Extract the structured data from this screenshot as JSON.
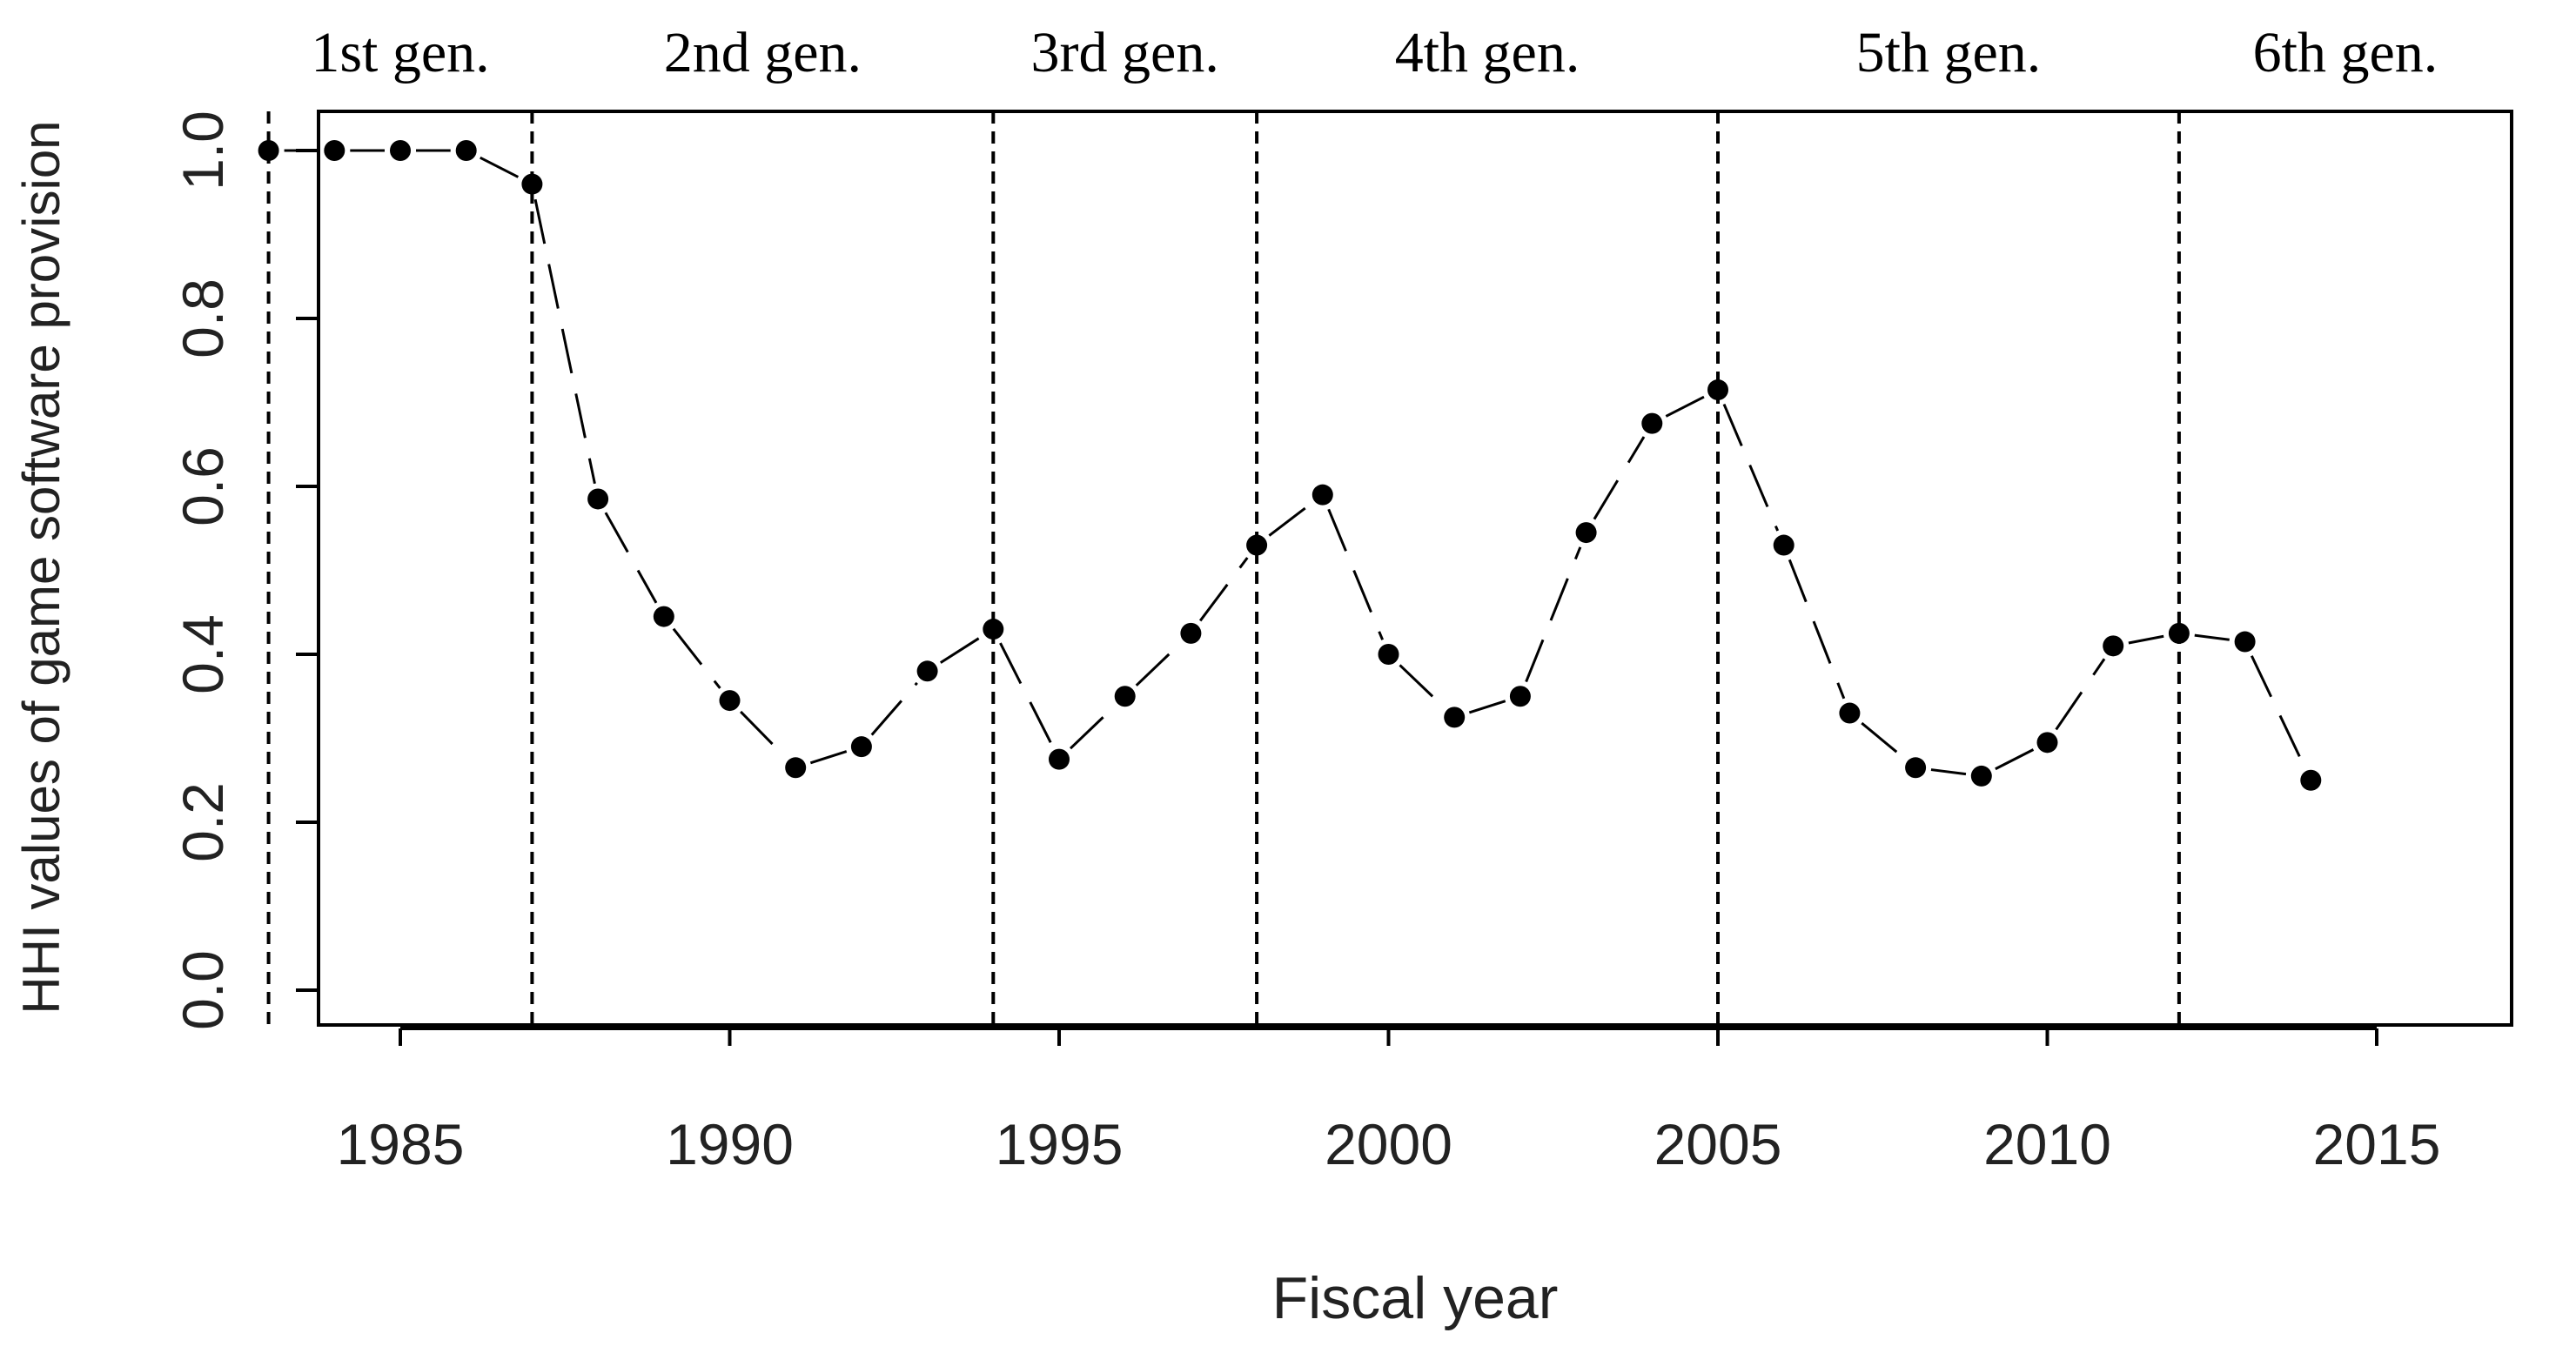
{
  "chart_data": {
    "type": "line",
    "title": "",
    "xlabel": "Fiscal year",
    "ylabel": "HHI values of game software provision",
    "xlim": [
      1982,
      2015
    ],
    "ylim": [
      0.0,
      1.0
    ],
    "x_ticks": [
      1985,
      1990,
      1995,
      2000,
      2005,
      2010,
      2015
    ],
    "y_ticks": [
      0.0,
      0.2,
      0.4,
      0.6,
      0.8,
      1.0
    ],
    "x_tick_labels": [
      "1985",
      "1990",
      "1995",
      "2000",
      "2005",
      "2010",
      "2015"
    ],
    "y_tick_labels": [
      "0.0",
      "0.2",
      "0.4",
      "0.6",
      "0.8",
      "1.0"
    ],
    "grid": false,
    "line_style": "dashed",
    "marker": "filled-circle",
    "series": [
      {
        "x": [
          1983,
          1984,
          1985,
          1986,
          1987,
          1988,
          1989,
          1990,
          1991,
          1992,
          1993,
          1994,
          1995,
          1996,
          1997,
          1998,
          1999,
          2000,
          2001,
          2002,
          2003,
          2004,
          2005,
          2006,
          2007,
          2008,
          2009,
          2010,
          2011,
          2012,
          2013,
          2014
        ],
        "values": [
          1.0,
          1.0,
          1.0,
          1.0,
          0.96,
          0.585,
          0.445,
          0.345,
          0.265,
          0.29,
          0.38,
          0.43,
          0.275,
          0.35,
          0.425,
          0.53,
          0.59,
          0.4,
          0.325,
          0.35,
          0.545,
          0.675,
          0.715,
          0.53,
          0.33,
          0.265,
          0.255,
          0.295,
          0.41,
          0.425,
          0.415,
          0.25
        ]
      }
    ],
    "generations": [
      {
        "label": "1st gen.",
        "start": 1983
      },
      {
        "label": "2nd gen.",
        "start": 1987
      },
      {
        "label": "3rd gen.",
        "start": 1994
      },
      {
        "label": "4th gen.",
        "start": 1998
      },
      {
        "label": "5th gen.",
        "start": 2005
      },
      {
        "label": "6th gen.",
        "start": 2012
      }
    ]
  }
}
